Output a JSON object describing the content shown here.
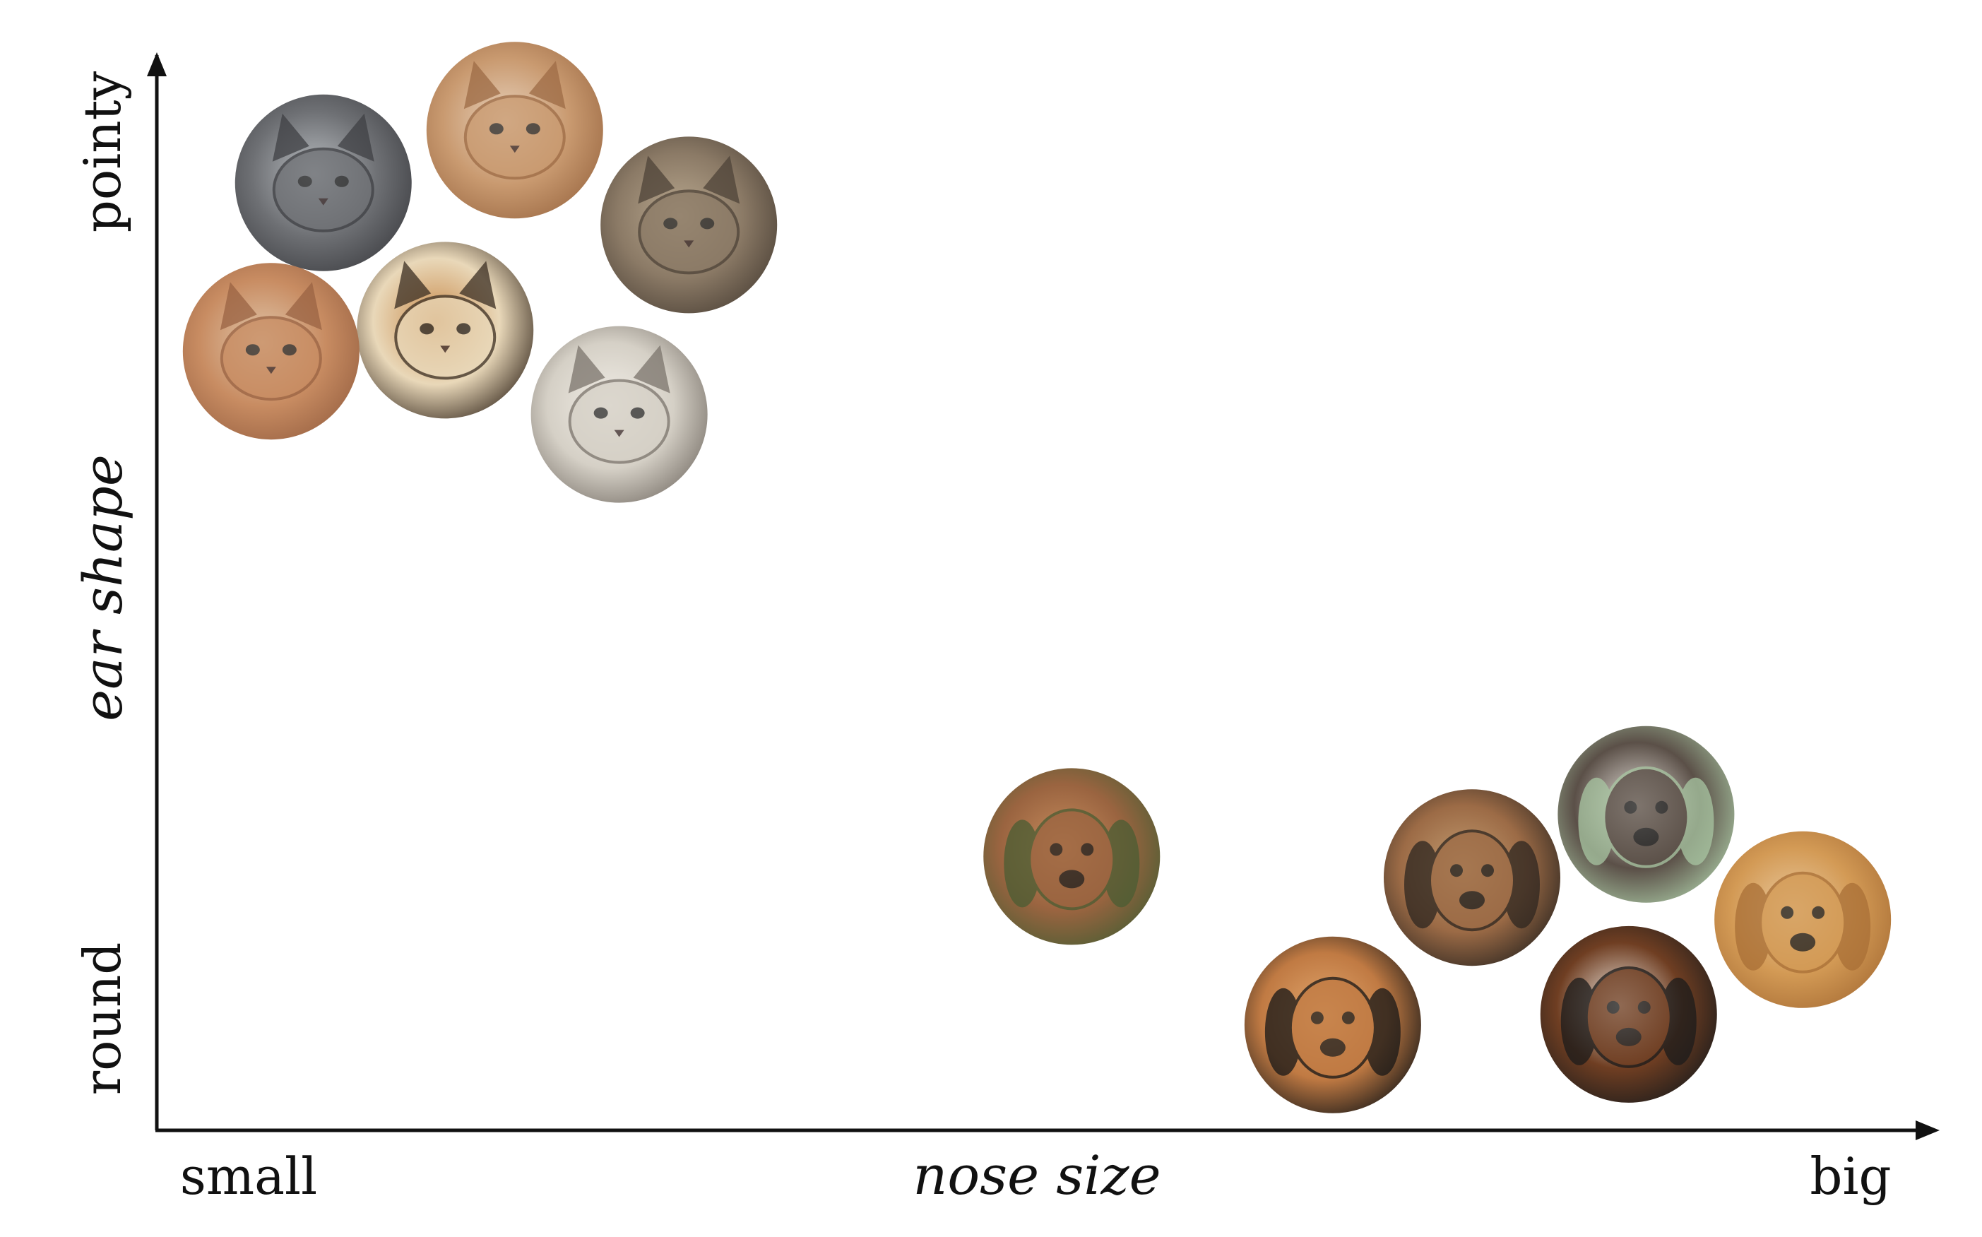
{
  "chart_data": {
    "type": "scatter",
    "title": "",
    "xlabel": "nose size",
    "ylabel": "ear shape",
    "x_tick_labels": {
      "low": "small",
      "high": "big"
    },
    "y_tick_labels": {
      "low": "round",
      "high": "pointy"
    },
    "xlim": [
      0,
      1
    ],
    "ylim": [
      0,
      1
    ],
    "grid": false,
    "legend": "none",
    "series": [
      {
        "name": "cats",
        "points": [
          {
            "x": 0.09,
            "y": 0.88,
            "animal": "grey cat",
            "colors": [
              "#6e7074",
              "#3f4044",
              "#b8bcc0"
            ]
          },
          {
            "x": 0.2,
            "y": 0.93,
            "animal": "orange tabby cat",
            "colors": [
              "#c99a70",
              "#9d6b45",
              "#e7d1bb"
            ]
          },
          {
            "x": 0.3,
            "y": 0.84,
            "animal": "tabby cat",
            "colors": [
              "#8b7a66",
              "#4e4338",
              "#b9a88f"
            ]
          },
          {
            "x": 0.16,
            "y": 0.74,
            "animal": "calico cat",
            "colors": [
              "#e9d8b9",
              "#3b2e22",
              "#c88a4b"
            ]
          },
          {
            "x": 0.06,
            "y": 0.72,
            "animal": "orange kitten",
            "colors": [
              "#c88c62",
              "#9a6343",
              "#e0c6aa"
            ]
          },
          {
            "x": 0.26,
            "y": 0.66,
            "animal": "tabby-white kitten",
            "colors": [
              "#d5d0c6",
              "#7b746c",
              "#f1ede6"
            ]
          }
        ]
      },
      {
        "name": "dogs",
        "points": [
          {
            "x": 0.52,
            "y": 0.24,
            "animal": "brown puppy",
            "colors": [
              "#9a6440",
              "#4a5d33",
              "#c88d5e"
            ]
          },
          {
            "x": 0.67,
            "y": 0.08,
            "animal": "cocker spaniel",
            "colors": [
              "#c07a43",
              "#171717",
              "#e3a86e"
            ]
          },
          {
            "x": 0.75,
            "y": 0.22,
            "animal": "beagle mix",
            "colors": [
              "#9c6b46",
              "#2d2620",
              "#c59e72"
            ]
          },
          {
            "x": 0.85,
            "y": 0.28,
            "animal": "tricolor hound",
            "colors": [
              "#5b5048",
              "#a9c7a3",
              "#e9e4de"
            ]
          },
          {
            "x": 0.84,
            "y": 0.09,
            "animal": "basset hound",
            "colors": [
              "#6f3e22",
              "#1b1b1b",
              "#f2ede6"
            ]
          },
          {
            "x": 0.94,
            "y": 0.18,
            "animal": "yellow lab",
            "colors": [
              "#d39a55",
              "#a96f36",
              "#eacba1"
            ]
          }
        ]
      }
    ]
  }
}
